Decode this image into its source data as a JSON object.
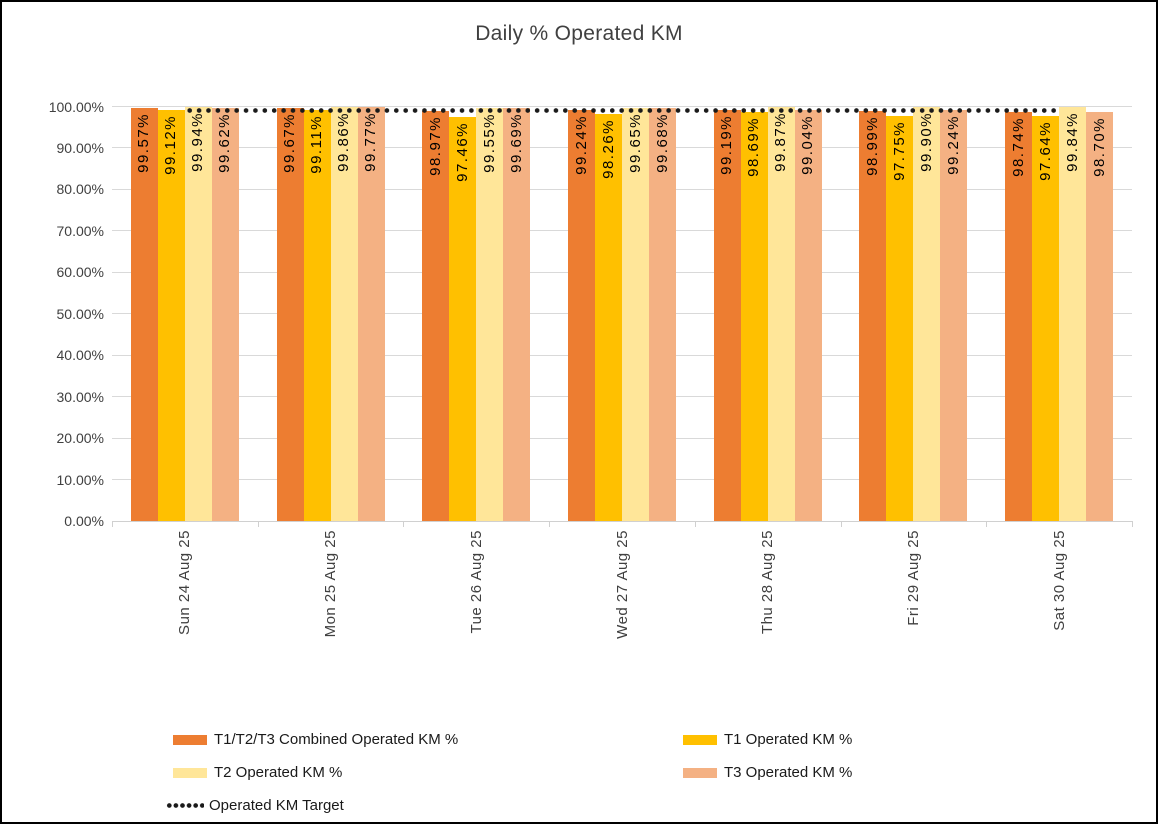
{
  "chart_data": {
    "type": "bar",
    "title": "Daily % Operated KM",
    "categories": [
      "Sun 24 Aug 25",
      "Mon 25 Aug 25",
      "Tue 26 Aug 25",
      "Wed 27 Aug 25",
      "Thu 28 Aug 25",
      "Fri 29 Aug 25",
      "Sat 30 Aug 25"
    ],
    "series": [
      {
        "name": "T1/T2/T3 Combined Operated KM %",
        "color": "#ED7D31",
        "values": [
          99.57,
          99.67,
          98.97,
          99.24,
          99.19,
          98.99,
          98.74
        ]
      },
      {
        "name": "T1 Operated KM %",
        "color": "#FFC000",
        "values": [
          99.12,
          99.11,
          97.46,
          98.26,
          98.69,
          97.75,
          97.64
        ]
      },
      {
        "name": "T2 Operated KM %",
        "color": "#FFE699",
        "values": [
          99.94,
          99.86,
          99.55,
          99.65,
          99.87,
          99.9,
          99.84
        ]
      },
      {
        "name": "T3 Operated KM %",
        "color": "#F4B183",
        "values": [
          99.62,
          99.77,
          99.69,
          99.68,
          99.04,
          99.24,
          98.7
        ]
      }
    ],
    "target_line": {
      "name": "Operated KM Target",
      "value": 99.0,
      "style": "dotted",
      "color": "#1a1a1a"
    },
    "data_labels": [
      "99.57%",
      "99.12%",
      "99.94%",
      "99.62%",
      "99.67%",
      "99.11%",
      "99.86%",
      "99.77%",
      "98.97%",
      "97.46%",
      "99.55%",
      "99.69%",
      "99.24%",
      "98.26%",
      "99.65%",
      "99.68%",
      "99.19%",
      "98.69%",
      "99.87%",
      "99.04%",
      "98.99%",
      "97.75%",
      "99.90%",
      "99.24%",
      "98.74%",
      "97.64%",
      "99.84%",
      "98.70%"
    ],
    "y_axis": {
      "min": 0,
      "max": 100,
      "step": 10,
      "tick_labels": [
        "0.00%",
        "10.00%",
        "20.00%",
        "30.00%",
        "40.00%",
        "50.00%",
        "60.00%",
        "70.00%",
        "80.00%",
        "90.00%",
        "100.00%"
      ]
    },
    "grid": true,
    "legend_position": "bottom"
  }
}
